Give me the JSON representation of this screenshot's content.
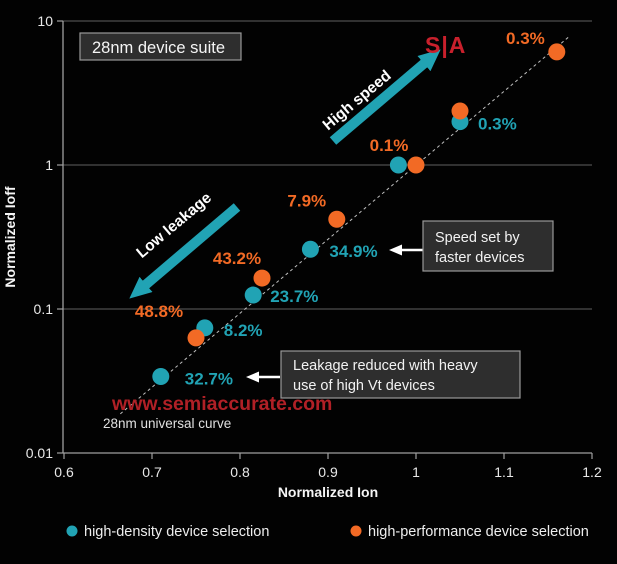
{
  "colors": {
    "teal": "#21a3b4",
    "orange": "#f26a25",
    "logo_red": "#c9202c",
    "watermark_red": "#b02026",
    "grid": "#606060",
    "axis": "#a0a0a0",
    "dash": "#bfbfbf",
    "box_fill": "#2e2e2e",
    "box_border": "#999999",
    "white": "#ffffff"
  },
  "chart_data": {
    "type": "scatter",
    "title_box": "28nm device suite",
    "xlabel": "Normalized Ion",
    "ylabel": "Normalized Ioff",
    "x_scale": "linear",
    "y_scale": "log",
    "xlim": [
      0.6,
      1.2
    ],
    "ylim": [
      0.01,
      10
    ],
    "x_ticks": [
      0.6,
      0.7,
      0.8,
      0.9,
      1,
      1.1,
      1.2
    ],
    "x_tick_labels": [
      "0.6",
      "0.7",
      "0.8",
      "0.9",
      "1",
      "1.1",
      "1.2"
    ],
    "y_ticks": [
      10,
      1,
      0.1,
      0.01
    ],
    "y_tick_labels": [
      "10",
      "1",
      "0.1",
      "0.01"
    ],
    "grid": "horizontal-major-only",
    "series": [
      {
        "name": "high-density device selection",
        "color_key": "teal",
        "points": [
          {
            "x": 0.71,
            "y": 0.034,
            "label": "32.7%",
            "anchor": "start",
            "dx": 24,
            "dy": 8,
            "bold": true
          },
          {
            "x": 0.76,
            "y": 0.074,
            "label": "8.2%",
            "anchor": "start",
            "dx": 19,
            "dy": 8,
            "bold": false
          },
          {
            "x": 0.815,
            "y": 0.125,
            "label": "23.7%",
            "anchor": "start",
            "dx": 17,
            "dy": 7,
            "bold": false
          },
          {
            "x": 0.88,
            "y": 0.26,
            "label": "34.9%",
            "anchor": "start",
            "dx": 19,
            "dy": 8,
            "bold": true
          },
          {
            "x": 0.98,
            "y": 1.0,
            "label": "",
            "anchor": "start",
            "dx": 0,
            "dy": 0,
            "bold": false
          },
          {
            "x": 1.05,
            "y": 2.0,
            "label": "0.3%",
            "anchor": "start",
            "dx": 18,
            "dy": 8,
            "bold": false
          }
        ]
      },
      {
        "name": "high-performance device selection",
        "color_key": "orange",
        "points": [
          {
            "x": 0.75,
            "y": 0.063,
            "label": "48.8%",
            "anchor": "middle",
            "dx": -37,
            "dy": -21,
            "bold": false
          },
          {
            "x": 0.825,
            "y": 0.164,
            "label": "43.2%",
            "anchor": "middle",
            "dx": -25,
            "dy": -14,
            "bold": false
          },
          {
            "x": 0.91,
            "y": 0.42,
            "label": "7.9%",
            "anchor": "middle",
            "dx": -30,
            "dy": -13,
            "bold": false
          },
          {
            "x": 1.0,
            "y": 1.0,
            "label": "0.1%",
            "anchor": "middle",
            "dx": -27,
            "dy": -14,
            "bold": false
          },
          {
            "x": 1.05,
            "y": 2.37,
            "label": "",
            "anchor": "middle",
            "dx": 0,
            "dy": 0,
            "bold": false
          },
          {
            "x": 1.16,
            "y": 6.1,
            "label": "0.3%",
            "anchor": "end",
            "dx": -12,
            "dy": -8,
            "bold": false
          }
        ]
      }
    ],
    "trendline": {
      "x1": 0.664,
      "y1": 0.0187,
      "x2": 1.173,
      "y2": 7.7,
      "style": "dashed"
    },
    "footnote": "28nm universal curve"
  },
  "annotations": {
    "high_speed_arrow_label": "High speed",
    "low_leakage_arrow_label": "Low leakage",
    "speed_box": {
      "line1": "Speed set by",
      "line2": "faster devices"
    },
    "leakage_box": {
      "line1": "Leakage reduced with heavy",
      "line2": "use of high Vt devices"
    }
  },
  "branding": {
    "logo": "S|A",
    "watermark": "www.semiaccurate.com"
  },
  "legend": [
    {
      "label": "high-density device selection",
      "color_key": "teal"
    },
    {
      "label": "high-performance device selection",
      "color_key": "orange"
    }
  ]
}
